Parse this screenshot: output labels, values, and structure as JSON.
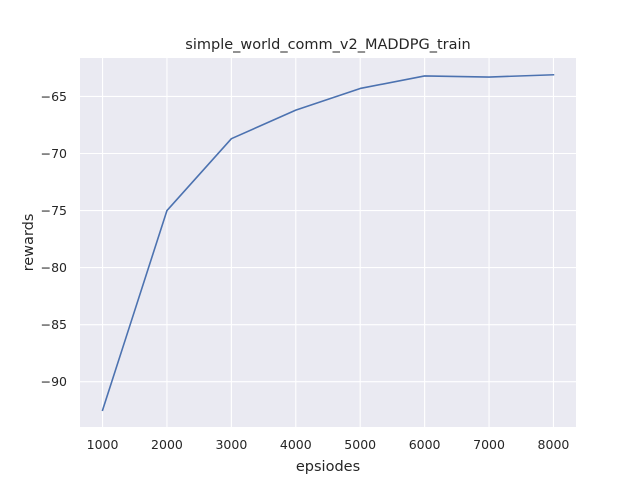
{
  "colors": {
    "plot_background": "#EAEAF2",
    "grid": "#FFFFFF",
    "line": "#4C72B0",
    "text": "#262626",
    "figure_background": "#FFFFFF"
  },
  "chart_data": {
    "type": "line",
    "title": "simple_world_comm_v2_MADDPG_train",
    "xlabel": "epsiodes",
    "ylabel": "rewards",
    "x": [
      1000,
      2000,
      3000,
      4000,
      5000,
      6000,
      7000,
      8000
    ],
    "series": [
      {
        "values": [
          -92.5,
          -75.0,
          -68.7,
          -66.2,
          -64.3,
          -63.2,
          -63.3,
          -63.1
        ]
      }
    ],
    "xticks": [
      1000,
      2000,
      3000,
      4000,
      5000,
      6000,
      7000,
      8000
    ],
    "xtick_labels": [
      "1000",
      "2000",
      "3000",
      "4000",
      "5000",
      "6000",
      "7000",
      "8000"
    ],
    "yticks": [
      -90,
      -85,
      -80,
      -75,
      -70,
      -65
    ],
    "ytick_labels": [
      "−90",
      "−85",
      "−80",
      "−75",
      "−70",
      "−65"
    ],
    "xlim": [
      650,
      8350
    ],
    "ylim": [
      -93.97,
      -61.63
    ],
    "grid": true,
    "legend": "none"
  }
}
